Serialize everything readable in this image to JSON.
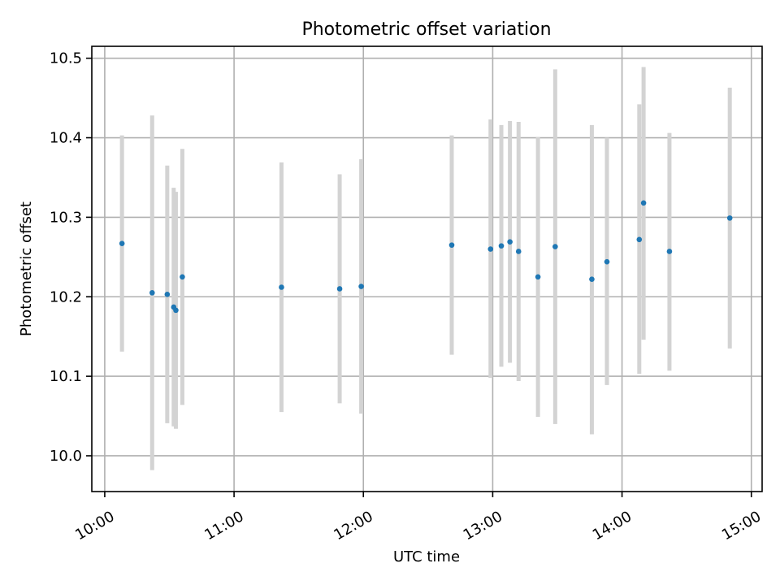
{
  "chart_data": {
    "type": "scatter",
    "title": "Photometric offset variation",
    "xlabel": "UTC time",
    "ylabel": "Photometric offset",
    "x_axis": {
      "type": "time",
      "range": [
        "09:54",
        "15:05"
      ],
      "ticks": [
        "10:00",
        "11:00",
        "12:00",
        "13:00",
        "14:00",
        "15:00"
      ]
    },
    "y_axis": {
      "range": [
        9.955,
        10.515
      ],
      "ticks": [
        "10.0",
        "10.1",
        "10.2",
        "10.3",
        "10.4",
        "10.5"
      ]
    },
    "grid": true,
    "colors": {
      "points": "#1f77b4",
      "error_bars": "#d3d3d3"
    },
    "points": [
      {
        "x": "10:08",
        "y": 10.267,
        "ylow": 10.131,
        "yhigh": 10.403
      },
      {
        "x": "10:22",
        "y": 10.205,
        "ylow": 9.982,
        "yhigh": 10.428
      },
      {
        "x": "10:29",
        "y": 10.203,
        "ylow": 10.041,
        "yhigh": 10.365
      },
      {
        "x": "10:32",
        "y": 10.187,
        "ylow": 10.037,
        "yhigh": 10.337
      },
      {
        "x": "10:33",
        "y": 10.183,
        "ylow": 10.034,
        "yhigh": 10.332
      },
      {
        "x": "10:36",
        "y": 10.225,
        "ylow": 10.064,
        "yhigh": 10.386
      },
      {
        "x": "11:22",
        "y": 10.212,
        "ylow": 10.055,
        "yhigh": 10.369
      },
      {
        "x": "11:49",
        "y": 10.21,
        "ylow": 10.066,
        "yhigh": 10.354
      },
      {
        "x": "11:59",
        "y": 10.213,
        "ylow": 10.053,
        "yhigh": 10.373
      },
      {
        "x": "12:41",
        "y": 10.265,
        "ylow": 10.127,
        "yhigh": 10.403
      },
      {
        "x": "12:59",
        "y": 10.26,
        "ylow": 10.098,
        "yhigh": 10.423
      },
      {
        "x": "13:04",
        "y": 10.264,
        "ylow": 10.112,
        "yhigh": 10.416
      },
      {
        "x": "13:08",
        "y": 10.269,
        "ylow": 10.117,
        "yhigh": 10.421
      },
      {
        "x": "13:12",
        "y": 10.257,
        "ylow": 10.094,
        "yhigh": 10.42
      },
      {
        "x": "13:21",
        "y": 10.225,
        "ylow": 10.049,
        "yhigh": 10.401
      },
      {
        "x": "13:29",
        "y": 10.263,
        "ylow": 10.04,
        "yhigh": 10.486
      },
      {
        "x": "13:46",
        "y": 10.222,
        "ylow": 10.027,
        "yhigh": 10.416
      },
      {
        "x": "13:53",
        "y": 10.244,
        "ylow": 10.089,
        "yhigh": 10.4
      },
      {
        "x": "14:08",
        "y": 10.272,
        "ylow": 10.103,
        "yhigh": 10.442
      },
      {
        "x": "14:10",
        "y": 10.318,
        "ylow": 10.146,
        "yhigh": 10.489
      },
      {
        "x": "14:22",
        "y": 10.257,
        "ylow": 10.107,
        "yhigh": 10.406
      },
      {
        "x": "14:50",
        "y": 10.299,
        "ylow": 10.135,
        "yhigh": 10.463
      }
    ]
  }
}
